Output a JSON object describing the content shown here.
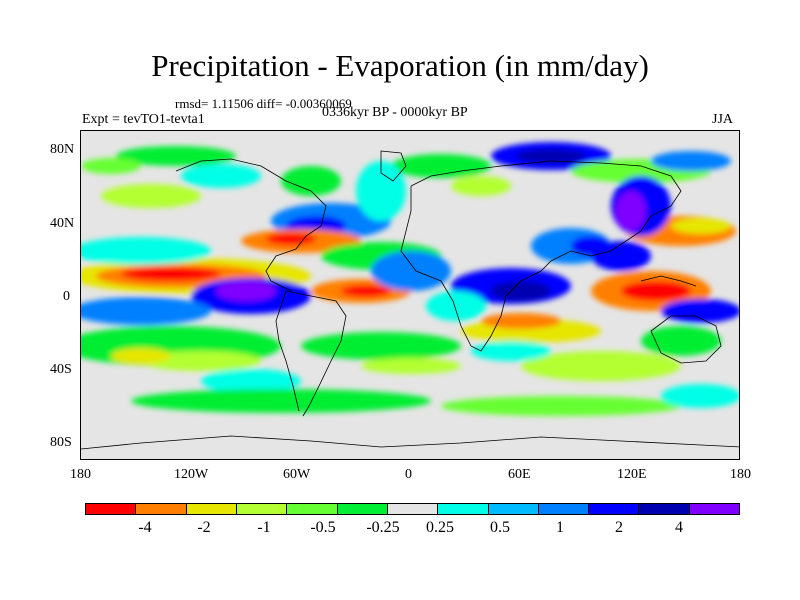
{
  "title": "Precipitation - Evaporation (in mm/day)",
  "stats": "rmsd= 1.11506 diff= -0.00360069",
  "experiment": "Expt = tevTO1-tevta1",
  "period": "0336kyr BP - 0000kyr BP",
  "season": "JJA",
  "lat_labels": [
    "80N",
    "40N",
    "0",
    "40S",
    "80S"
  ],
  "lon_labels": [
    "180",
    "120W",
    "60W",
    "0",
    "60E",
    "120E",
    "180"
  ],
  "colorbar": {
    "colors": [
      "#ff0000",
      "#ff8000",
      "#e6e600",
      "#b3ff33",
      "#66ff33",
      "#00ee33",
      "#e5e5e5",
      "#00ffe6",
      "#00bbff",
      "#0080ff",
      "#0000ff",
      "#0000b0",
      "#8000ff"
    ],
    "labels": [
      "-4",
      "-2",
      "-1",
      "-0.5",
      "-0.25",
      "0.25",
      "0.5",
      "1",
      "2",
      "4"
    ]
  }
}
